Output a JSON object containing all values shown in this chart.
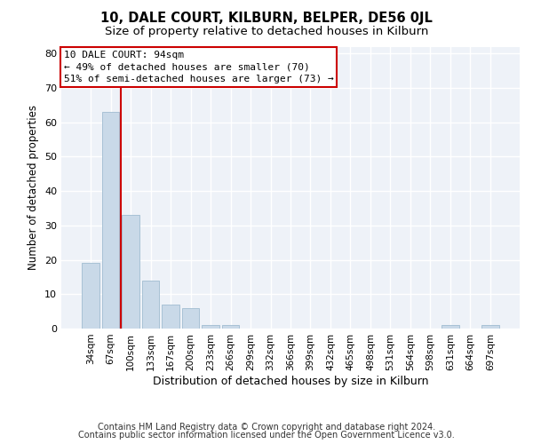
{
  "title": "10, DALE COURT, KILBURN, BELPER, DE56 0JL",
  "subtitle": "Size of property relative to detached houses in Kilburn",
  "xlabel": "Distribution of detached houses by size in Kilburn",
  "ylabel": "Number of detached properties",
  "categories": [
    "34sqm",
    "67sqm",
    "100sqm",
    "133sqm",
    "167sqm",
    "200sqm",
    "233sqm",
    "266sqm",
    "299sqm",
    "332sqm",
    "366sqm",
    "399sqm",
    "432sqm",
    "465sqm",
    "498sqm",
    "531sqm",
    "564sqm",
    "598sqm",
    "631sqm",
    "664sqm",
    "697sqm"
  ],
  "values": [
    19,
    63,
    33,
    14,
    7,
    6,
    1,
    1,
    0,
    0,
    0,
    0,
    0,
    0,
    0,
    0,
    0,
    0,
    1,
    0,
    1
  ],
  "bar_color": "#c9d9e8",
  "bar_edge_color": "#a0bcd0",
  "vline_color": "#cc0000",
  "vline_xindex": 1.5,
  "annotation_line1": "10 DALE COURT: 94sqm",
  "annotation_line2": "← 49% of detached houses are smaller (70)",
  "annotation_line3": "51% of semi-detached houses are larger (73) →",
  "annotation_box_color": "#cc0000",
  "annotation_fontsize": 8.0,
  "ylim": [
    0,
    82
  ],
  "yticks": [
    0,
    10,
    20,
    30,
    40,
    50,
    60,
    70,
    80
  ],
  "bg_color": "#eef2f8",
  "grid_color": "#ffffff",
  "footer_line1": "Contains HM Land Registry data © Crown copyright and database right 2024.",
  "footer_line2": "Contains public sector information licensed under the Open Government Licence v3.0.",
  "title_fontsize": 10.5,
  "subtitle_fontsize": 9.5,
  "xlabel_fontsize": 9,
  "ylabel_fontsize": 8.5,
  "footer_fontsize": 7
}
